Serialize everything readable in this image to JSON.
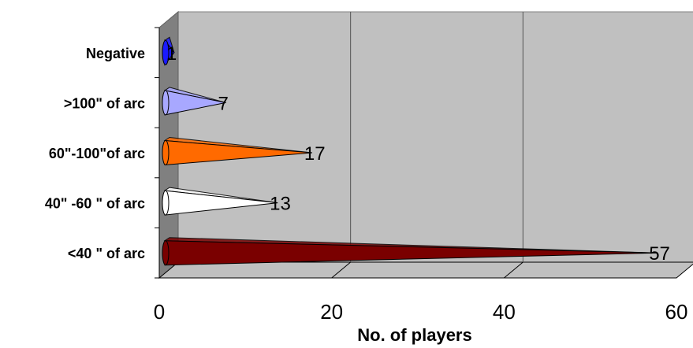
{
  "chart_data": {
    "type": "bar",
    "orientation": "horizontal",
    "shape": "3d-cone",
    "categories": [
      "Negative",
      ">100\" of arc",
      "60\"-100\"of arc",
      "40\" -60 \" of arc",
      "<40 \" of arc"
    ],
    "values": [
      1,
      7,
      17,
      13,
      57
    ],
    "colors": [
      "#1a1aff",
      "#a8a8ff",
      "#ff6a00",
      "#ffffff",
      "#7a0000"
    ],
    "xlabel": "No. of players",
    "xlim": [
      0,
      60
    ],
    "xticks": [
      "0",
      "20",
      "40",
      "60"
    ],
    "grid": true,
    "background": "#c0c0c0",
    "legend": "none"
  }
}
